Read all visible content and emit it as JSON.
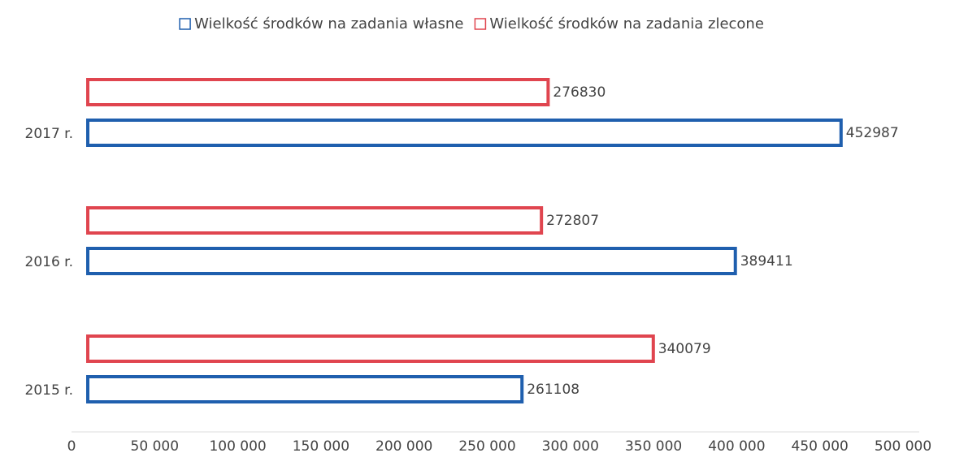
{
  "chart_data": {
    "type": "barh",
    "categories": [
      "2015 r.",
      "2016 r.",
      "2017 r."
    ],
    "series": [
      {
        "name": "Wielkość środków na zadania własne",
        "color": "#1f5fae",
        "values": [
          261108,
          389411,
          452987
        ]
      },
      {
        "name": "Wielkość środków na zadania zlecone",
        "color": "#e0454f",
        "values": [
          340079,
          272807,
          276830
        ]
      }
    ],
    "xlim": [
      0,
      500000
    ],
    "xticks": [
      0,
      {
        "value": 50000,
        "label": "50 000"
      },
      {
        "value": 100000,
        "label": "100 000"
      },
      {
        "value": 150000,
        "label": "150 000"
      },
      {
        "value": 200000,
        "label": "200 000"
      },
      {
        "value": 250000,
        "label": "250 000"
      },
      {
        "value": 300000,
        "label": "300 000"
      },
      {
        "value": 350000,
        "label": "350 000"
      },
      {
        "value": 400000,
        "label": "400 000"
      },
      {
        "value": 450000,
        "label": "450 000"
      },
      {
        "value": 500000,
        "label": "500 000"
      }
    ],
    "legend": "top"
  }
}
